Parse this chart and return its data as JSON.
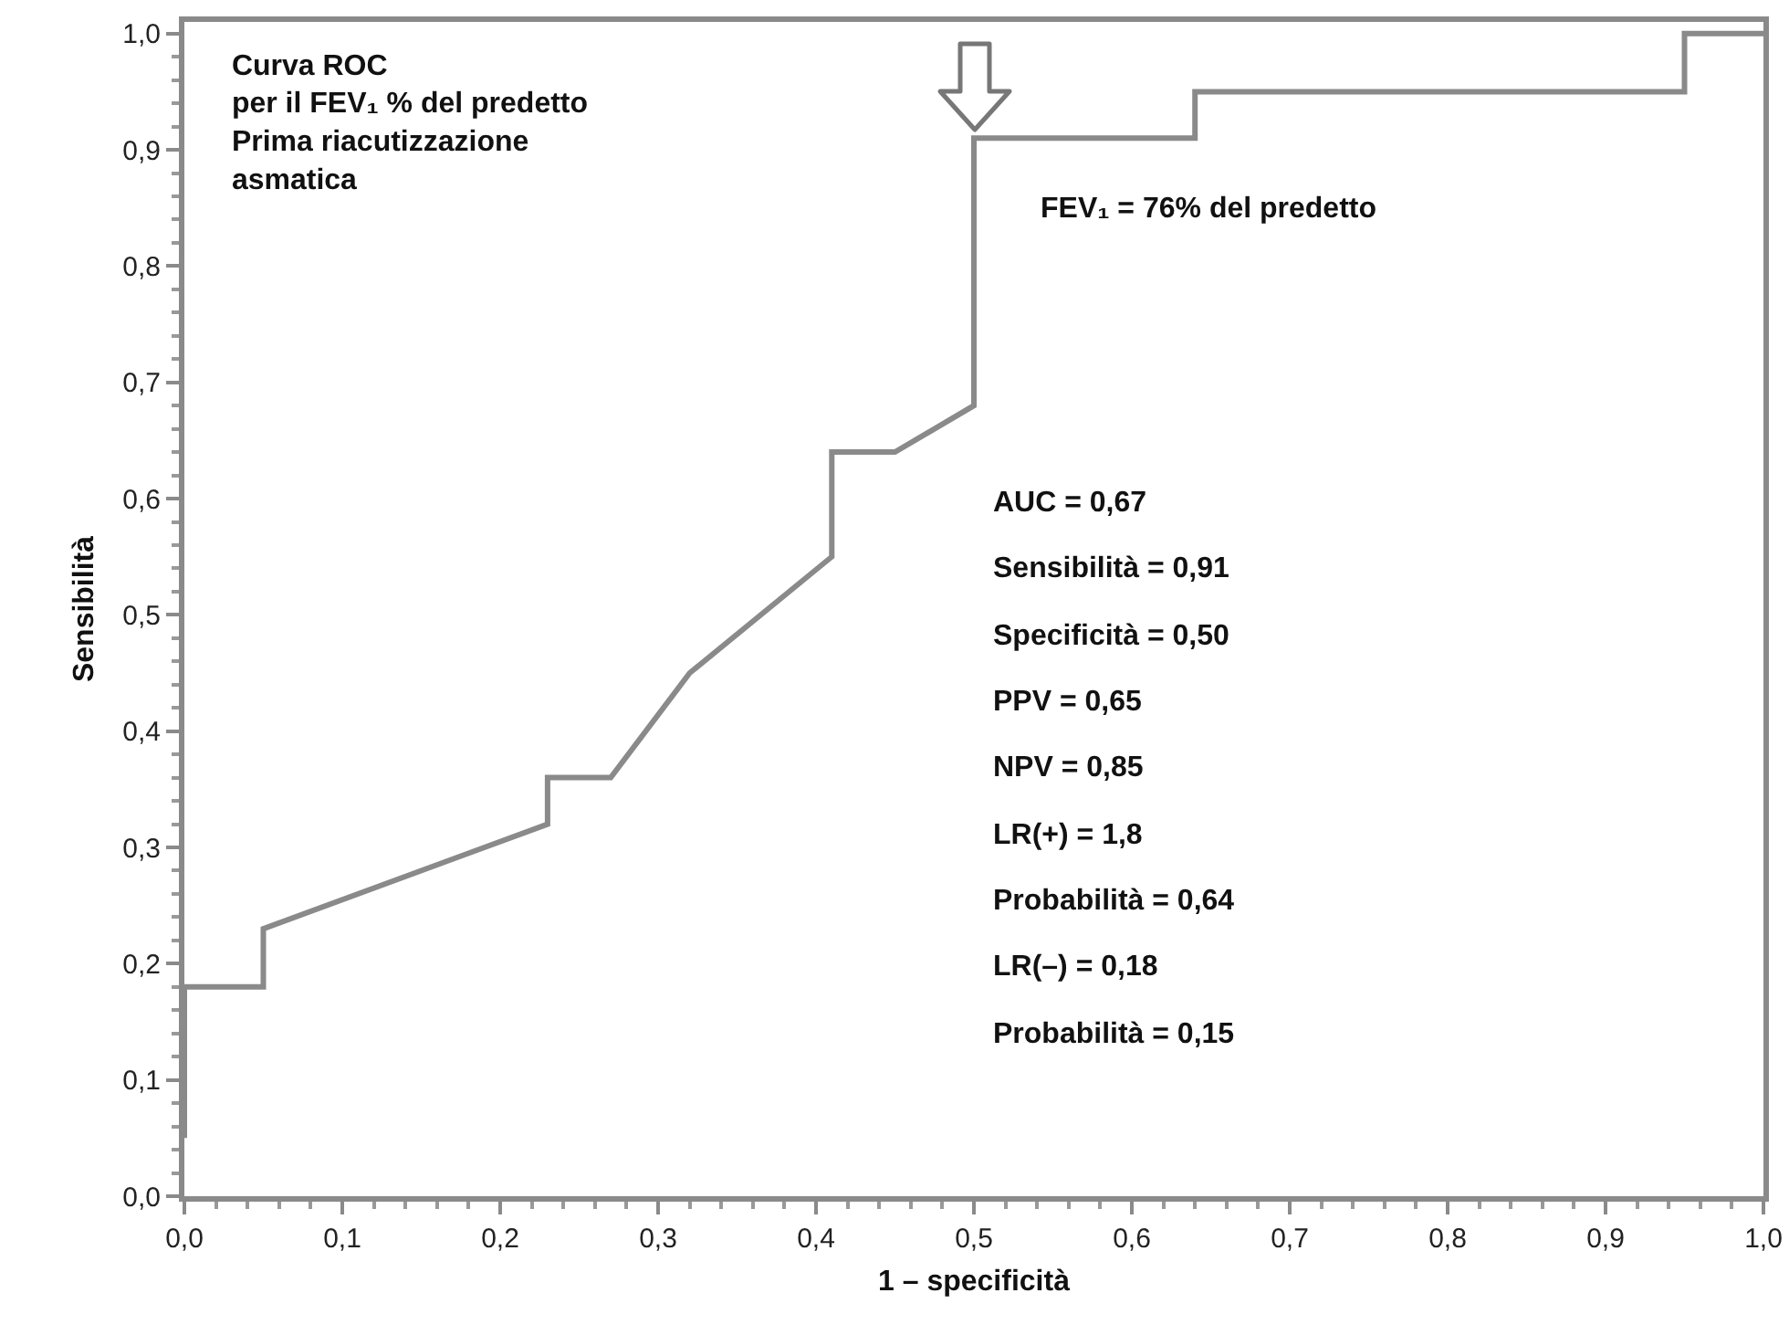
{
  "chart_data": {
    "type": "step",
    "title": "Curva ROC\nper il FEV₁ % del predetto\nPrima riacutizzazione\nasmatica",
    "xlabel": "1 – specificità",
    "ylabel": "Sensibilità",
    "series": [
      {
        "color": "#8a8a8a",
        "x": [
          0,
          0,
          0.05,
          0.05,
          0.23,
          0.23,
          0.27,
          0.32,
          0.41,
          0.41,
          0.45,
          0.5,
          0.5,
          0.64,
          0.64,
          0.95,
          0.95,
          1
        ],
        "values": [
          0.05,
          0.18,
          0.18,
          0.23,
          0.32,
          0.36,
          0.36,
          0.45,
          0.55,
          0.64,
          0.64,
          0.68,
          0.91,
          0.91,
          0.95,
          0.95,
          1,
          1
        ]
      }
    ],
    "xlim": [
      0,
      1
    ],
    "ylim": [
      0,
      1.01
    ],
    "xticks": [
      {
        "value": 0,
        "label": "0,0"
      },
      {
        "value": 0.1,
        "label": "0,1"
      },
      {
        "value": 0.2,
        "label": "0,2"
      },
      {
        "value": 0.3,
        "label": "0,3"
      },
      {
        "value": 0.4,
        "label": "0,4"
      },
      {
        "value": 0.5,
        "label": "0,5"
      },
      {
        "value": 0.6,
        "label": "0,6"
      },
      {
        "value": 0.7,
        "label": "0,7"
      },
      {
        "value": 0.8,
        "label": "0,8"
      },
      {
        "value": 0.9,
        "label": "0,9"
      },
      {
        "value": 1,
        "label": "1,0"
      }
    ],
    "yticks": [
      {
        "value": 0,
        "label": "0,0"
      },
      {
        "value": 0.1,
        "label": "0,1"
      },
      {
        "value": 0.2,
        "label": "0,2"
      },
      {
        "value": 0.3,
        "label": "0,3"
      },
      {
        "value": 0.4,
        "label": "0,4"
      },
      {
        "value": 0.5,
        "label": "0,5"
      },
      {
        "value": 0.6,
        "label": "0,6"
      },
      {
        "value": 0.7,
        "label": "0,7"
      },
      {
        "value": 0.8,
        "label": "0,8"
      },
      {
        "value": 0.9,
        "label": "0,9"
      },
      {
        "value": 1,
        "label": "1,0"
      }
    ],
    "annotations": [
      "FEV₁ = 76% del predetto",
      "AUC = 0,67",
      "Sensibilità = 0,91",
      "Specificità = 0,50",
      "PPV = 0,65",
      "NPV = 0,85",
      "LR(+) = 1,8",
      "Probabilità = 0,64",
      "LR(–) = 0,18",
      "Probabilità = 0,15"
    ],
    "marker": "none",
    "line_style": "solid"
  }
}
